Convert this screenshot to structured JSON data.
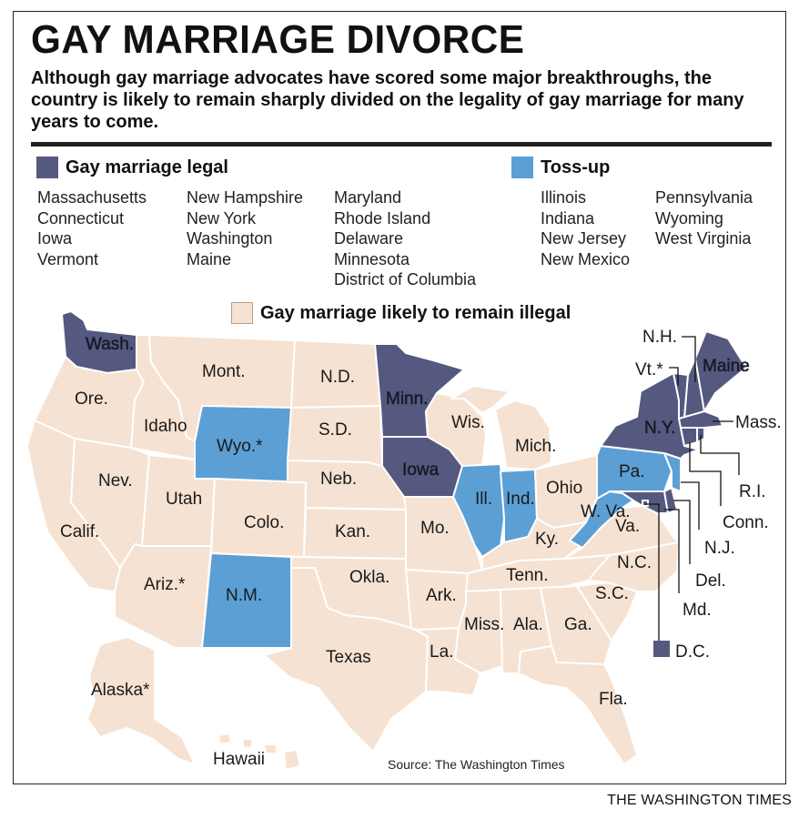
{
  "title": "GAY MARRIAGE DIVORCE",
  "subtitle": "Although gay marriage advocates have scored some major breakthroughs, the country is likely to remain sharply divided on the legality of gay marriage for many years to come.",
  "colors": {
    "legal": "#55597f",
    "tossup": "#5b9fd5",
    "illegal": "#f6e2d2",
    "border": "#ffffff"
  },
  "legend": {
    "legal": {
      "label": "Gay marriage legal",
      "columns": [
        [
          "Massachusetts",
          "Connecticut",
          "Iowa",
          "Vermont"
        ],
        [
          "New Hampshire",
          "New York",
          "Washington",
          "Maine"
        ],
        [
          "Maryland",
          "Rhode Island",
          "Delaware",
          "Minnesota",
          "District of Columbia"
        ]
      ]
    },
    "tossup": {
      "label": "Toss-up",
      "columns": [
        [
          "Illinois",
          "Indiana",
          "New Jersey",
          "New Mexico"
        ],
        [
          "Pennsylvania",
          "Wyoming",
          "West Virginia"
        ]
      ]
    },
    "illegal": {
      "label": "Gay marriage likely to remain illegal"
    }
  },
  "states": {
    "wa": {
      "label": "Wash.",
      "status": "legal"
    },
    "or": {
      "label": "Ore.",
      "status": "illegal"
    },
    "ca": {
      "label": "Calif.",
      "status": "illegal"
    },
    "id": {
      "label": "Idaho",
      "status": "illegal"
    },
    "nv": {
      "label": "Nev.",
      "status": "illegal"
    },
    "mt": {
      "label": "Mont.",
      "status": "illegal"
    },
    "wy": {
      "label": "Wyo.*",
      "status": "tossup"
    },
    "ut": {
      "label": "Utah",
      "status": "illegal"
    },
    "az": {
      "label": "Ariz.*",
      "status": "illegal"
    },
    "co": {
      "label": "Colo.",
      "status": "illegal"
    },
    "nm": {
      "label": "N.M.",
      "status": "tossup"
    },
    "nd": {
      "label": "N.D.",
      "status": "illegal"
    },
    "sd": {
      "label": "S.D.",
      "status": "illegal"
    },
    "ne": {
      "label": "Neb.",
      "status": "illegal"
    },
    "ks": {
      "label": "Kan.",
      "status": "illegal"
    },
    "ok": {
      "label": "Okla.",
      "status": "illegal"
    },
    "tx": {
      "label": "Texas",
      "status": "illegal"
    },
    "mn": {
      "label": "Minn.",
      "status": "legal"
    },
    "ia": {
      "label": "Iowa",
      "status": "legal"
    },
    "mo": {
      "label": "Mo.",
      "status": "illegal"
    },
    "ar": {
      "label": "Ark.",
      "status": "illegal"
    },
    "la": {
      "label": "La.",
      "status": "illegal"
    },
    "wi": {
      "label": "Wis.",
      "status": "illegal"
    },
    "il": {
      "label": "Ill.",
      "status": "tossup"
    },
    "mi": {
      "label": "Mich.",
      "status": "illegal"
    },
    "in": {
      "label": "Ind.",
      "status": "tossup"
    },
    "oh": {
      "label": "Ohio",
      "status": "illegal"
    },
    "ky": {
      "label": "Ky.",
      "status": "illegal"
    },
    "tn": {
      "label": "Tenn.",
      "status": "illegal"
    },
    "ms": {
      "label": "Miss.",
      "status": "illegal"
    },
    "al": {
      "label": "Ala.",
      "status": "illegal"
    },
    "ga": {
      "label": "Ga.",
      "status": "illegal"
    },
    "fl": {
      "label": "Fla.",
      "status": "illegal"
    },
    "sc": {
      "label": "S.C.",
      "status": "illegal"
    },
    "nc": {
      "label": "N.C.",
      "status": "illegal"
    },
    "va": {
      "label": "Va.",
      "status": "illegal"
    },
    "wv": {
      "label": "W. Va.",
      "status": "tossup"
    },
    "pa": {
      "label": "Pa.",
      "status": "tossup"
    },
    "ny": {
      "label": "N.Y.",
      "status": "legal"
    },
    "vt": {
      "label": "Vt.*",
      "status": "legal"
    },
    "nh": {
      "label": "N.H.",
      "status": "legal"
    },
    "me": {
      "label": "Maine",
      "status": "legal"
    },
    "ma": {
      "label": "Mass.",
      "status": "legal"
    },
    "ri": {
      "label": "R.I.",
      "status": "legal"
    },
    "ct": {
      "label": "Conn.",
      "status": "legal"
    },
    "nj": {
      "label": "N.J.",
      "status": "tossup"
    },
    "de": {
      "label": "Del.",
      "status": "legal"
    },
    "md": {
      "label": "Md.",
      "status": "legal"
    },
    "dc": {
      "label": "D.C.",
      "status": "legal"
    },
    "ak": {
      "label": "Alaska*",
      "status": "illegal"
    },
    "hi": {
      "label": "Hawaii",
      "status": "illegal"
    }
  },
  "source": "Source: The Washington Times",
  "credit": "THE WASHINGTON TIMES"
}
